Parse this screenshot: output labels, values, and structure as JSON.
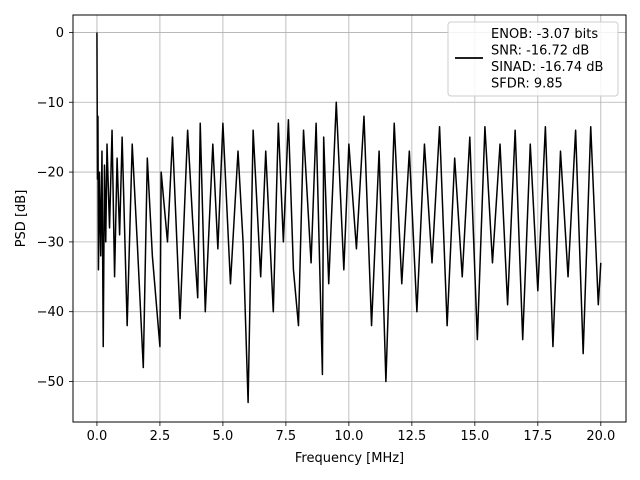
{
  "chart_data": {
    "type": "line",
    "title": "",
    "xlabel": "Frequency [MHz]",
    "ylabel": "PSD [dB]",
    "xlim": [
      -0.95,
      21.0
    ],
    "ylim": [
      -55.8,
      2.5
    ],
    "xticks": [
      0.0,
      2.5,
      5.0,
      7.5,
      10.0,
      12.5,
      15.0,
      17.5,
      20.0
    ],
    "xtick_labels": [
      "0.0",
      "2.5",
      "5.0",
      "7.5",
      "10.0",
      "12.5",
      "15.0",
      "17.5",
      "20.0"
    ],
    "yticks": [
      0,
      -10,
      -20,
      -30,
      -40,
      -50
    ],
    "ytick_labels": [
      "0",
      "−10",
      "−20",
      "−30",
      "−40",
      "−50"
    ],
    "grid": true,
    "legend_position": "top-right",
    "series_color": "#000000",
    "series": [
      {
        "name": "",
        "x": [
          0.0,
          0.02,
          0.04,
          0.06,
          0.1,
          0.15,
          0.2,
          0.25,
          0.3,
          0.35,
          0.4,
          0.5,
          0.6,
          0.7,
          0.8,
          0.9,
          1.0,
          1.2,
          1.4,
          1.6,
          1.84,
          2.0,
          2.2,
          2.5,
          2.55,
          2.8,
          3.0,
          3.3,
          3.6,
          3.8,
          4.0,
          4.1,
          4.3,
          4.6,
          4.8,
          5.0,
          5.3,
          5.6,
          5.8,
          6.0,
          6.2,
          6.5,
          6.7,
          7.0,
          7.2,
          7.4,
          7.6,
          7.8,
          8.0,
          8.2,
          8.5,
          8.7,
          8.95,
          9.0,
          9.2,
          9.5,
          9.8,
          10.0,
          10.3,
          10.6,
          10.9,
          11.2,
          11.47,
          11.8,
          12.1,
          12.4,
          12.7,
          13.0,
          13.3,
          13.6,
          13.9,
          14.2,
          14.5,
          14.8,
          15.1,
          15.4,
          15.7,
          16.0,
          16.3,
          16.6,
          16.9,
          17.2,
          17.5,
          17.8,
          18.1,
          18.4,
          18.7,
          19.0,
          19.3,
          19.6,
          19.9,
          20.0
        ],
        "y": [
          0.0,
          -21.0,
          -12.0,
          -34.0,
          -20.0,
          -32.0,
          -17.0,
          -45.0,
          -19.0,
          -30.0,
          -16.0,
          -28.0,
          -14.0,
          -35.0,
          -18.0,
          -29.0,
          -15.0,
          -42.0,
          -16.0,
          -30.0,
          -48.0,
          -18.0,
          -32.0,
          -45.0,
          -20.0,
          -30.0,
          -15.0,
          -41.0,
          -14.0,
          -27.0,
          -38.0,
          -13.0,
          -40.0,
          -16.0,
          -31.0,
          -13.0,
          -36.0,
          -17.0,
          -30.0,
          -53.0,
          -14.0,
          -35.0,
          -17.0,
          -40.0,
          -13.0,
          -30.0,
          -12.5,
          -34.0,
          -42.0,
          -14.0,
          -33.0,
          -13.0,
          -49.0,
          -15.0,
          -36.0,
          -10.0,
          -34.0,
          -16.0,
          -31.0,
          -12.0,
          -42.0,
          -17.0,
          -50.0,
          -13.0,
          -36.0,
          -17.0,
          -40.0,
          -16.0,
          -33.0,
          -13.5,
          -42.0,
          -18.0,
          -35.0,
          -15.0,
          -44.0,
          -13.5,
          -33.0,
          -16.0,
          -39.0,
          -14.0,
          -44.0,
          -16.0,
          -37.0,
          -13.5,
          -45.0,
          -17.0,
          -35.0,
          -14.0,
          -46.0,
          -13.5,
          -39.0,
          -33.0
        ]
      }
    ],
    "legend_entries": [
      "ENOB: -3.07 bits",
      "SNR: -16.72 dB",
      "SINAD: -16.74 dB",
      "SFDR: 9.85"
    ]
  }
}
